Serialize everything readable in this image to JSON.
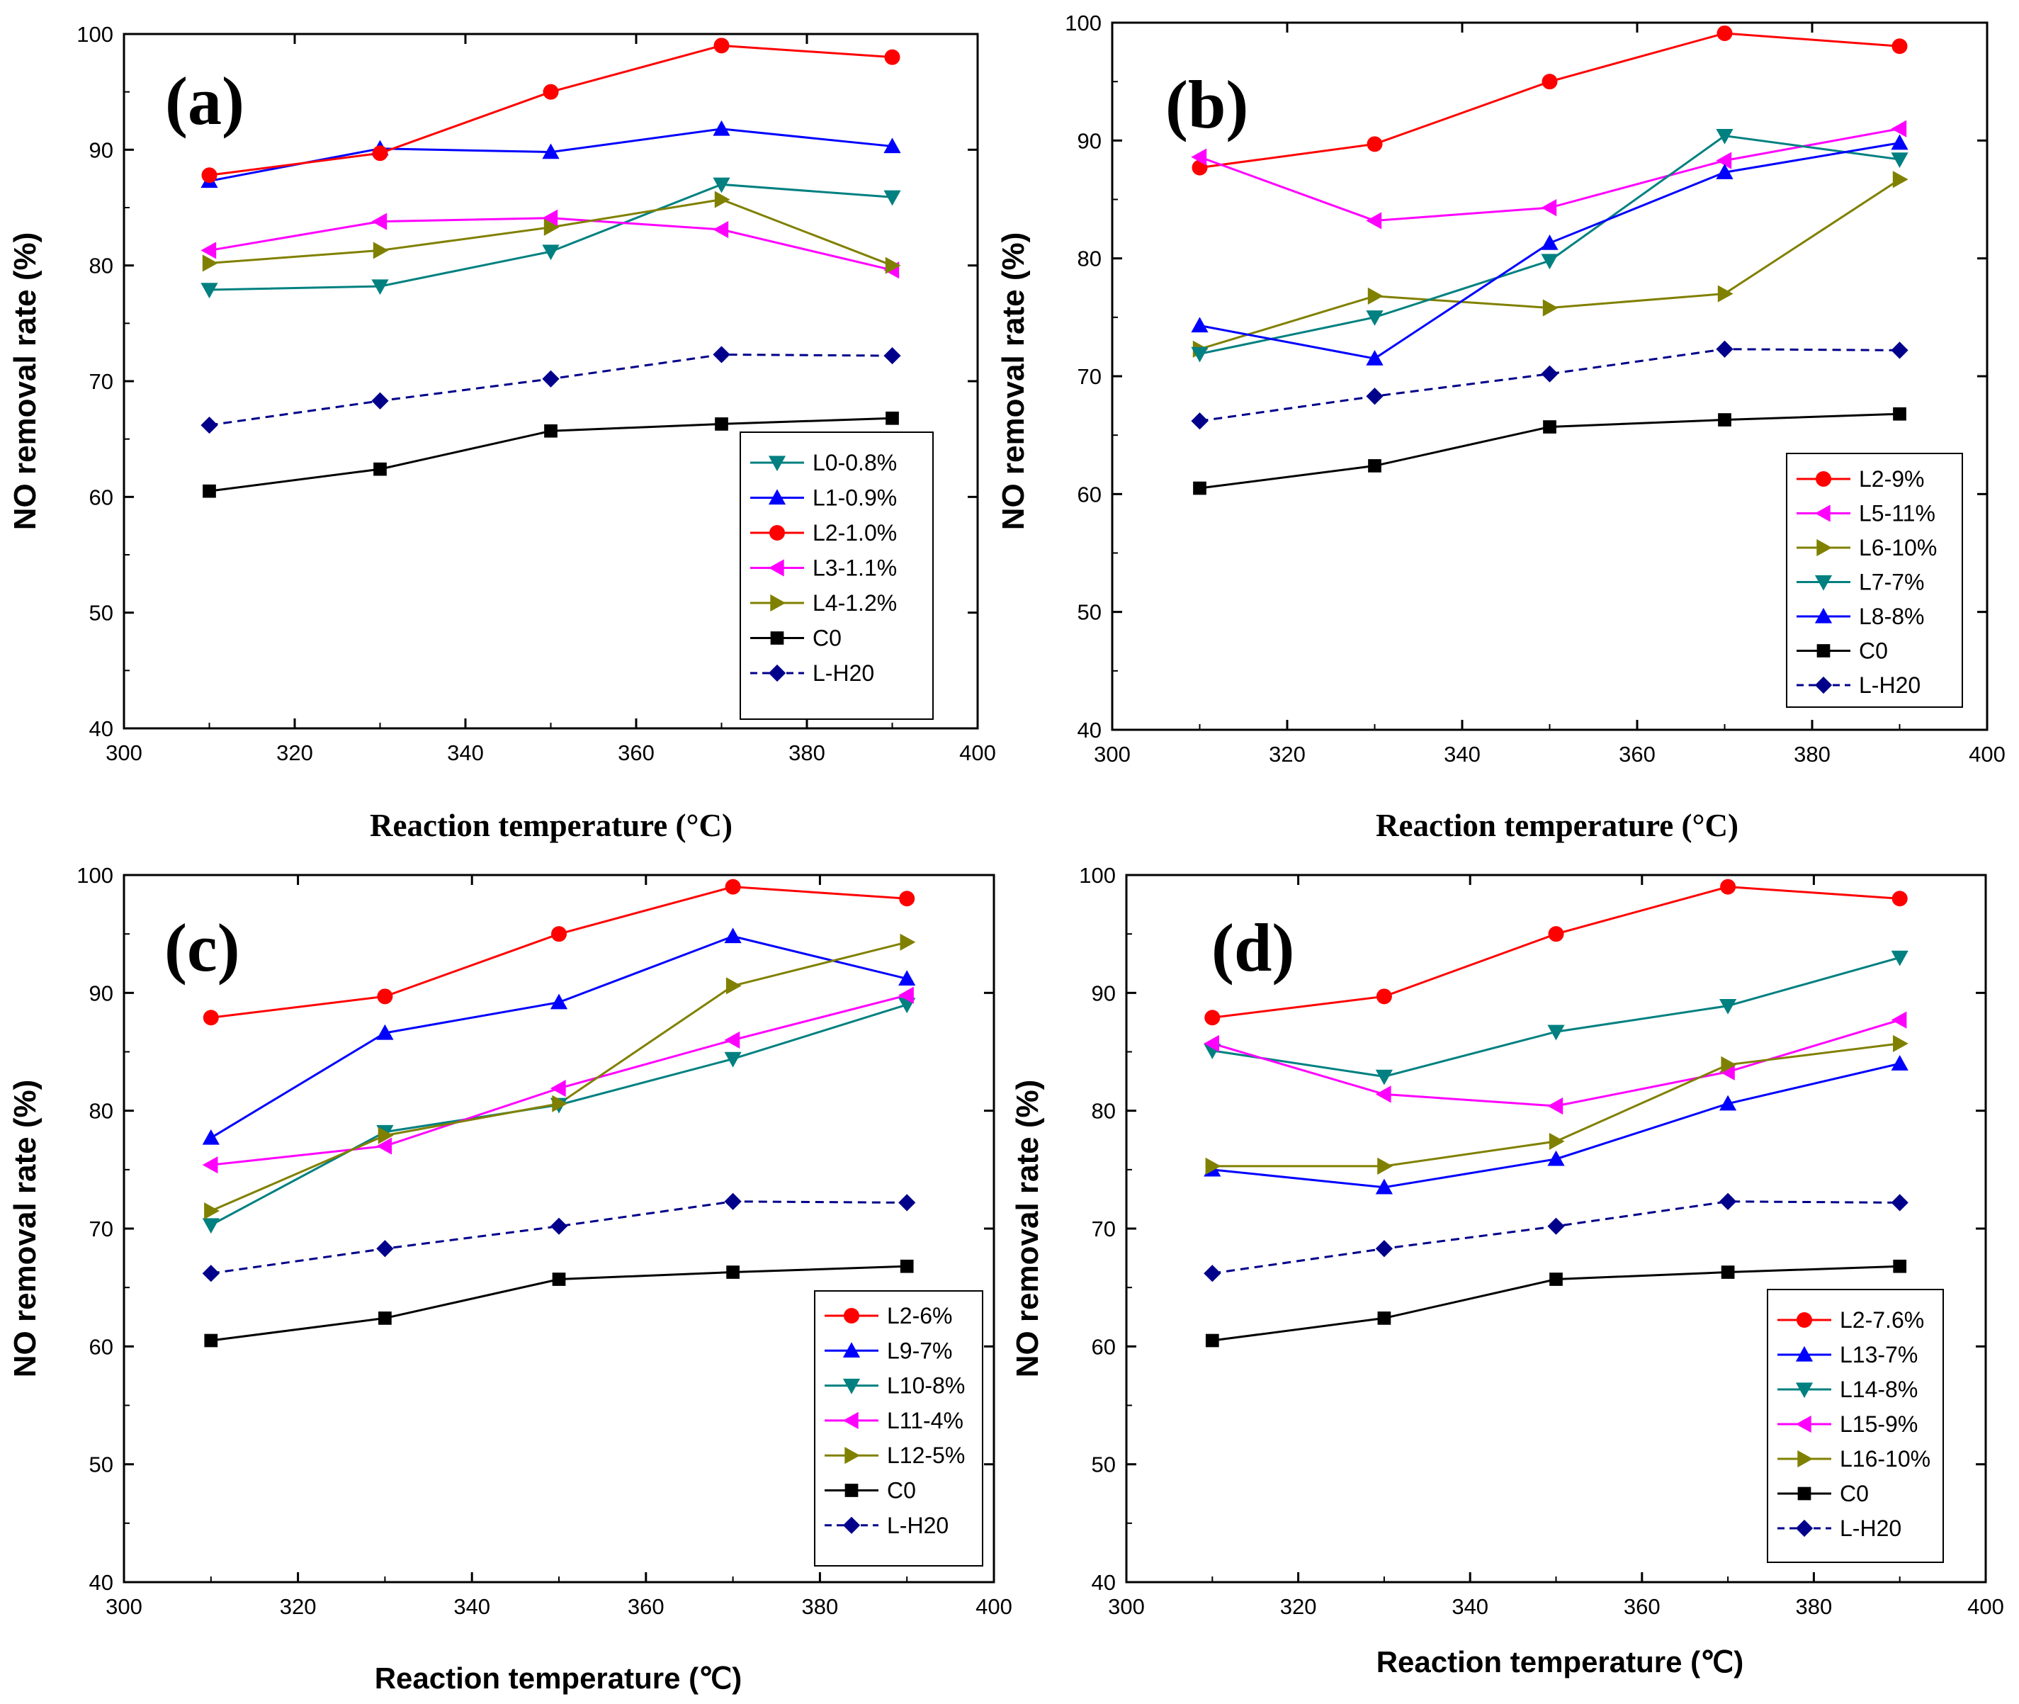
{
  "chart_data": [
    {
      "type": "line",
      "panel_label": "(a)",
      "xlabel": "Reaction temperature (°C)",
      "ylabel": "NO removal rate (%)",
      "xlim": [
        300,
        400
      ],
      "ylim": [
        40,
        100
      ],
      "x_ticks": [
        300,
        320,
        340,
        360,
        380,
        400
      ],
      "y_ticks": [
        40,
        50,
        60,
        70,
        80,
        90,
        100
      ],
      "x": [
        310,
        330,
        350,
        370,
        390
      ],
      "legend_position": "bottom-right",
      "series": [
        {
          "name": "L0-0.8%",
          "color": "#008080",
          "marker": "triangle-down",
          "dashed": false,
          "values": [
            77.9,
            78.2,
            81.2,
            87.0,
            85.9
          ]
        },
        {
          "name": "L1-0.9%",
          "color": "#0000ff",
          "marker": "triangle-up",
          "dashed": false,
          "values": [
            87.3,
            90.1,
            89.8,
            91.8,
            90.3
          ]
        },
        {
          "name": "L2-1.0%",
          "color": "#ff0000",
          "marker": "circle",
          "dashed": false,
          "values": [
            87.8,
            89.7,
            95.0,
            99.0,
            98.0
          ]
        },
        {
          "name": "L3-1.1%",
          "color": "#ff00ff",
          "marker": "triangle-left",
          "dashed": false,
          "values": [
            81.3,
            83.8,
            84.1,
            83.1,
            79.6
          ]
        },
        {
          "name": "L4-1.2%",
          "color": "#808000",
          "marker": "triangle-right",
          "dashed": false,
          "values": [
            80.2,
            81.3,
            83.3,
            85.7,
            80.0
          ]
        },
        {
          "name": "C0",
          "color": "#000000",
          "marker": "square",
          "dashed": false,
          "values": [
            60.5,
            62.4,
            65.7,
            66.3,
            66.8
          ]
        },
        {
          "name": "L-H20",
          "color": "#00008b",
          "marker": "diamond",
          "dashed": true,
          "values": [
            66.2,
            68.3,
            70.2,
            72.3,
            72.2
          ]
        }
      ]
    },
    {
      "type": "line",
      "panel_label": "(b)",
      "xlabel": "Reaction temperature (°C)",
      "ylabel": "NO removal rate (%)",
      "xlim": [
        300,
        400
      ],
      "ylim": [
        40,
        100
      ],
      "x_ticks": [
        300,
        320,
        340,
        360,
        380,
        400
      ],
      "y_ticks": [
        40,
        50,
        60,
        70,
        80,
        90,
        100
      ],
      "x": [
        310,
        330,
        350,
        370,
        390
      ],
      "legend_position": "bottom-right",
      "series": [
        {
          "name": "L2-9%",
          "color": "#ff0000",
          "marker": "circle",
          "dashed": false,
          "values": [
            87.7,
            89.7,
            95.0,
            99.1,
            98.0
          ]
        },
        {
          "name": "L5-11%",
          "color": "#ff00ff",
          "marker": "triangle-left",
          "dashed": false,
          "values": [
            88.6,
            83.2,
            84.3,
            88.3,
            91.0
          ]
        },
        {
          "name": "L6-10%",
          "color": "#808000",
          "marker": "triangle-right",
          "dashed": false,
          "values": [
            72.3,
            76.8,
            75.8,
            77.0,
            86.7
          ]
        },
        {
          "name": "L7-7%",
          "color": "#008080",
          "marker": "triangle-down",
          "dashed": false,
          "values": [
            71.9,
            75.0,
            79.8,
            90.4,
            88.4
          ]
        },
        {
          "name": "L8-8%",
          "color": "#0000ff",
          "marker": "triangle-up",
          "dashed": false,
          "values": [
            74.3,
            71.5,
            81.3,
            87.3,
            89.8
          ]
        },
        {
          "name": "C0",
          "color": "#000000",
          "marker": "square",
          "dashed": false,
          "values": [
            60.5,
            62.4,
            65.7,
            66.3,
            66.8
          ]
        },
        {
          "name": "L-H20",
          "color": "#00008b",
          "marker": "diamond",
          "dashed": true,
          "values": [
            66.2,
            68.3,
            70.2,
            72.3,
            72.2
          ]
        }
      ]
    },
    {
      "type": "line",
      "panel_label": "(c)",
      "xlabel": "Reaction temperature (℃)",
      "ylabel": "NO removal rate (%)",
      "xlim": [
        300,
        400
      ],
      "ylim": [
        40,
        100
      ],
      "x_ticks": [
        300,
        320,
        340,
        360,
        380,
        400
      ],
      "y_ticks": [
        40,
        50,
        60,
        70,
        80,
        90,
        100
      ],
      "x": [
        310,
        330,
        350,
        370,
        390
      ],
      "legend_position": "bottom-right",
      "series": [
        {
          "name": "L2-6%",
          "color": "#ff0000",
          "marker": "circle",
          "dashed": false,
          "values": [
            87.9,
            89.7,
            95.0,
            99.0,
            98.0
          ]
        },
        {
          "name": "L9-7%",
          "color": "#0000ff",
          "marker": "triangle-up",
          "dashed": false,
          "values": [
            77.7,
            86.6,
            89.2,
            94.8,
            91.2
          ]
        },
        {
          "name": "L10-8%",
          "color": "#008080",
          "marker": "triangle-down",
          "dashed": false,
          "values": [
            70.3,
            78.2,
            80.5,
            84.4,
            89.0
          ]
        },
        {
          "name": "L11-4%",
          "color": "#ff00ff",
          "marker": "triangle-left",
          "dashed": false,
          "values": [
            75.4,
            77.0,
            81.9,
            86.0,
            89.8
          ]
        },
        {
          "name": "L12-5%",
          "color": "#808000",
          "marker": "triangle-right",
          "dashed": false,
          "values": [
            71.5,
            77.9,
            80.6,
            90.6,
            94.3
          ]
        },
        {
          "name": "C0",
          "color": "#000000",
          "marker": "square",
          "dashed": false,
          "values": [
            60.5,
            62.4,
            65.7,
            66.3,
            66.8
          ]
        },
        {
          "name": "L-H20",
          "color": "#00008b",
          "marker": "diamond",
          "dashed": true,
          "values": [
            66.2,
            68.3,
            70.2,
            72.3,
            72.2
          ]
        }
      ]
    },
    {
      "type": "line",
      "panel_label": "(d)",
      "xlabel": "Reaction temperature (℃)",
      "ylabel": "NO removal rate (%)",
      "xlim": [
        300,
        400
      ],
      "ylim": [
        40,
        100
      ],
      "x_ticks": [
        300,
        320,
        340,
        360,
        380,
        400
      ],
      "y_ticks": [
        40,
        50,
        60,
        70,
        80,
        90,
        100
      ],
      "x": [
        310,
        330,
        350,
        370,
        390
      ],
      "legend_position": "bottom-right",
      "series": [
        {
          "name": "L2-7.6%",
          "color": "#ff0000",
          "marker": "circle",
          "dashed": false,
          "values": [
            87.9,
            89.7,
            95.0,
            99.0,
            98.0
          ]
        },
        {
          "name": "L13-7%",
          "color": "#0000ff",
          "marker": "triangle-up",
          "dashed": false,
          "values": [
            75.0,
            73.5,
            75.9,
            80.6,
            84.0
          ]
        },
        {
          "name": "L14-8%",
          "color": "#008080",
          "marker": "triangle-down",
          "dashed": false,
          "values": [
            85.1,
            82.9,
            86.7,
            88.9,
            93.0
          ]
        },
        {
          "name": "L15-9%",
          "color": "#ff00ff",
          "marker": "triangle-left",
          "dashed": false,
          "values": [
            85.7,
            81.4,
            80.4,
            83.3,
            87.7
          ]
        },
        {
          "name": "L16-10%",
          "color": "#808000",
          "marker": "triangle-right",
          "dashed": false,
          "values": [
            75.3,
            75.3,
            77.4,
            83.9,
            85.7
          ]
        },
        {
          "name": "C0",
          "color": "#000000",
          "marker": "square",
          "dashed": false,
          "values": [
            60.5,
            62.4,
            65.7,
            66.3,
            66.8
          ]
        },
        {
          "name": "L-H20",
          "color": "#00008b",
          "marker": "diamond",
          "dashed": true,
          "values": [
            66.2,
            68.3,
            70.2,
            72.3,
            72.2
          ]
        }
      ]
    }
  ]
}
